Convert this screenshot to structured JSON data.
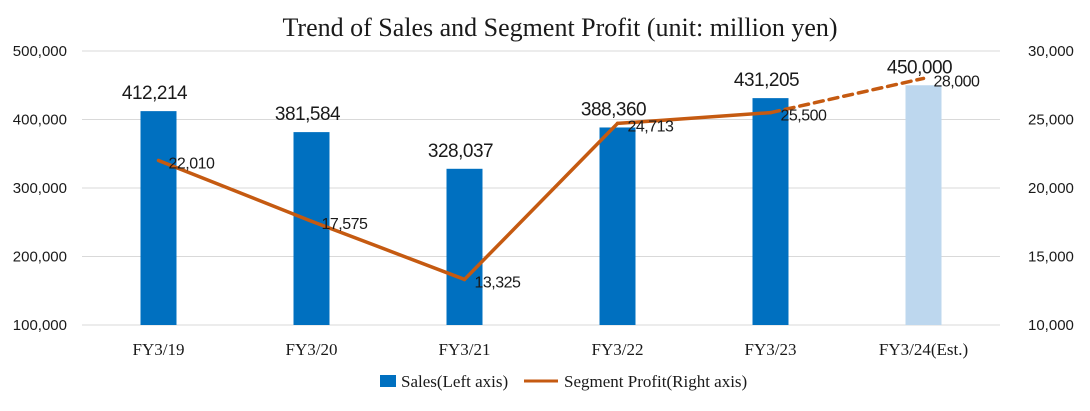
{
  "chart_data": {
    "type": "bar",
    "title": "Trend of Sales and Segment Profit (unit: million yen)",
    "categories": [
      "FY3/19",
      "FY3/20",
      "FY3/21",
      "FY3/22",
      "FY3/23",
      "FY3/24(Est.)"
    ],
    "series": [
      {
        "name": "Sales(Left axis)",
        "type": "bar",
        "axis": "left",
        "values": [
          412214,
          381584,
          328037,
          388360,
          431205,
          450000
        ],
        "labels": [
          "412,214",
          "381,584",
          "328,037",
          "388,360",
          "431,205",
          "450,000"
        ],
        "estimate_from_index": 5,
        "color": "#0070C0",
        "estimate_color": "#BDD7EE"
      },
      {
        "name": "Segment Profit(Right axis)",
        "type": "line",
        "axis": "right",
        "values": [
          22010,
          17575,
          13325,
          24713,
          25500,
          28000
        ],
        "labels": [
          "22,010",
          "17,575",
          "13,325",
          "24,713",
          "25,500",
          "28,000"
        ],
        "estimate_from_index": 5,
        "color": "#C55A11"
      }
    ],
    "y_left": {
      "min": 100000,
      "max": 500000,
      "ticks": [
        100000,
        200000,
        300000,
        400000,
        500000
      ],
      "tick_labels": [
        "100,000",
        "200,000",
        "300,000",
        "400,000",
        "500,000"
      ]
    },
    "y_right": {
      "min": 10000,
      "max": 30000,
      "ticks": [
        10000,
        15000,
        20000,
        25000,
        30000
      ],
      "tick_labels": [
        "10,000",
        "15,000",
        "20,000",
        "25,000",
        "30,000"
      ]
    },
    "grid": true,
    "legend_position": "bottom-center"
  }
}
